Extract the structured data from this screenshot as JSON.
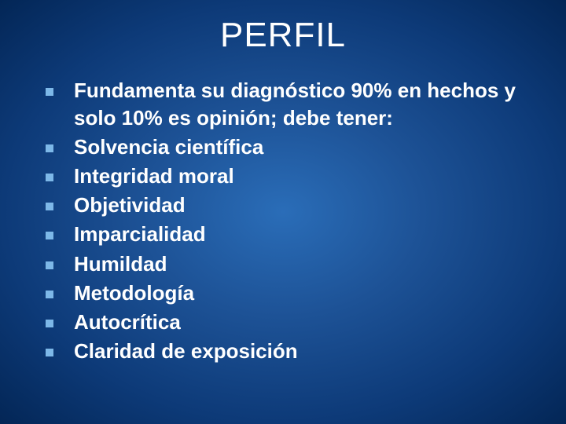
{
  "slide": {
    "title": "PERFIL",
    "title_fontsize": 44,
    "title_color": "#ffffff",
    "background_gradient": {
      "type": "radial",
      "stops": [
        "#2a6db8",
        "#1d5296",
        "#0d3a78",
        "#032656"
      ]
    },
    "bullet_color": "#7db8e8",
    "bullet_size": 10,
    "text_color": "#ffffff",
    "text_fontsize": 26,
    "text_weight": 700,
    "items": [
      "Fundamenta su diagnóstico 90% en hechos y solo 10% es opinión; debe tener:",
      "Solvencia científica",
      "Integridad moral",
      "Objetividad",
      "Imparcialidad",
      "Humildad",
      "Metodología",
      "Autocrítica",
      "Claridad de exposición"
    ]
  }
}
